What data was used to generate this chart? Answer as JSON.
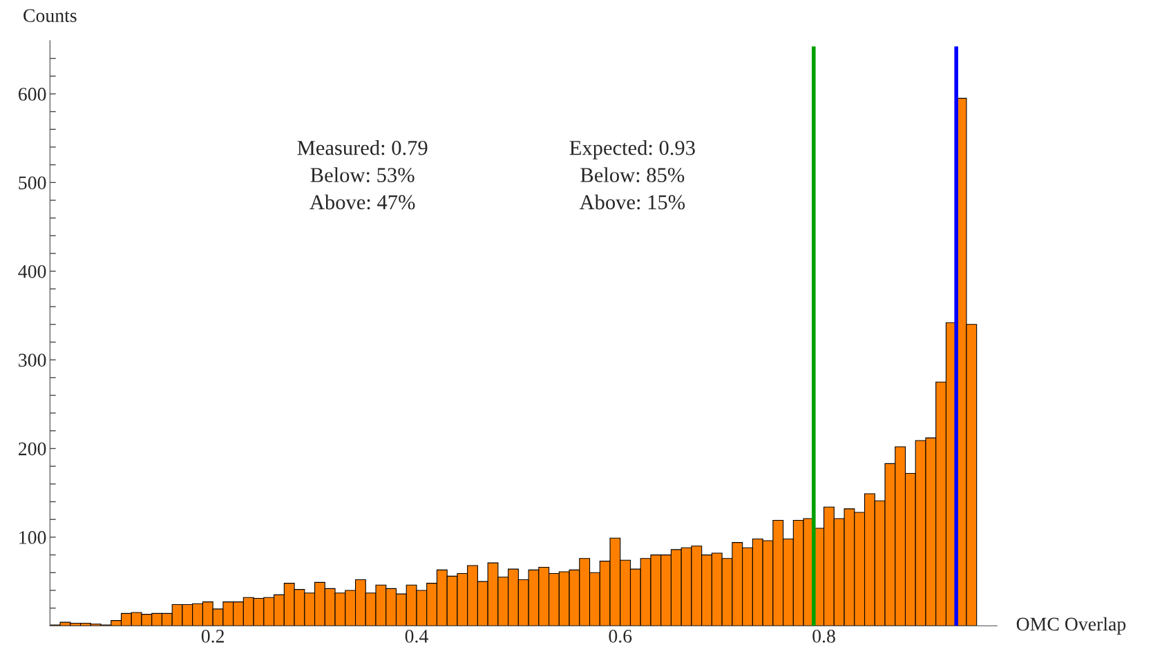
{
  "chart_data": {
    "type": "histogram",
    "xlabel": "OMC Overlap",
    "ylabel": "Counts",
    "bins": [
      0.04,
      0.05,
      0.06,
      0.07,
      0.08,
      0.09,
      0.1,
      0.11,
      0.12,
      0.13,
      0.14,
      0.15,
      0.16,
      0.17,
      0.18,
      0.19,
      0.2,
      0.21,
      0.22,
      0.23,
      0.24,
      0.25,
      0.26,
      0.27,
      0.28,
      0.29,
      0.3,
      0.31,
      0.32,
      0.33,
      0.34,
      0.35,
      0.36,
      0.37,
      0.38,
      0.39,
      0.4,
      0.41,
      0.42,
      0.43,
      0.44,
      0.45,
      0.46,
      0.47,
      0.48,
      0.49,
      0.5,
      0.51,
      0.52,
      0.53,
      0.54,
      0.55,
      0.56,
      0.57,
      0.58,
      0.59,
      0.6,
      0.61,
      0.62,
      0.63,
      0.64,
      0.65,
      0.66,
      0.67,
      0.68,
      0.69,
      0.7,
      0.71,
      0.72,
      0.73,
      0.74,
      0.75,
      0.76,
      0.77,
      0.78,
      0.79,
      0.8,
      0.81,
      0.82,
      0.83,
      0.84,
      0.85,
      0.86,
      0.87,
      0.88,
      0.89,
      0.9,
      0.91,
      0.92,
      0.93,
      0.94,
      0.95
    ],
    "values": [
      1,
      4,
      3,
      3,
      2,
      1,
      6,
      14,
      15,
      13,
      14,
      14,
      24,
      24,
      25,
      27,
      19,
      27,
      27,
      32,
      31,
      32,
      35,
      48,
      41,
      37,
      49,
      42,
      37,
      40,
      52,
      37,
      46,
      42,
      36,
      46,
      40,
      48,
      63,
      56,
      59,
      68,
      50,
      71,
      55,
      64,
      52,
      63,
      66,
      59,
      61,
      63,
      76,
      60,
      73,
      99,
      74,
      64,
      76,
      80,
      80,
      86,
      88,
      90,
      80,
      82,
      76,
      94,
      88,
      98,
      96,
      119,
      98,
      119,
      121,
      110,
      134,
      121,
      132,
      128,
      149,
      141,
      183,
      202,
      172,
      209,
      212,
      275,
      342,
      595,
      340
    ],
    "color": "#ff8000",
    "xlim": [
      0.04,
      0.97
    ],
    "ylim": [
      0,
      660
    ],
    "xticks": [
      0.2,
      0.4,
      0.6,
      0.8
    ],
    "yticks": [
      {
        "value": 20,
        "label": null
      },
      {
        "value": 40,
        "label": null
      },
      {
        "value": 60,
        "label": null
      },
      {
        "value": 80,
        "label": null
      },
      100,
      {
        "value": 120,
        "label": null
      },
      {
        "value": 140,
        "label": null
      },
      {
        "value": 160,
        "label": null
      },
      {
        "value": 180,
        "label": null
      },
      200,
      {
        "value": 220,
        "label": null
      },
      {
        "value": 240,
        "label": null
      },
      {
        "value": 260,
        "label": null
      },
      {
        "value": 280,
        "label": null
      },
      300,
      {
        "value": 320,
        "label": null
      },
      {
        "value": 340,
        "label": null
      },
      {
        "value": 360,
        "label": null
      },
      {
        "value": 380,
        "label": null
      },
      400,
      {
        "value": 420,
        "label": null
      },
      {
        "value": 440,
        "label": null
      },
      {
        "value": 460,
        "label": null
      },
      {
        "value": 480,
        "label": null
      },
      500,
      {
        "value": 520,
        "label": null
      },
      {
        "value": 540,
        "label": null
      },
      {
        "value": 560,
        "label": null
      },
      {
        "value": 580,
        "label": null
      },
      600,
      {
        "value": 620,
        "label": null
      },
      {
        "value": 640,
        "label": null
      }
    ],
    "ref_lines": [
      {
        "axis": "x",
        "value": 0.79,
        "color": "#00a000"
      },
      {
        "axis": "x",
        "value": 0.93,
        "color": "#0000ff"
      }
    ],
    "annotations": [
      "Measured: 0.79\nBelow: 53%\nAbove: 47%",
      "Expected: 0.93\nBelow: 85%\nAbove: 15%"
    ],
    "grid": false,
    "legend": false
  }
}
